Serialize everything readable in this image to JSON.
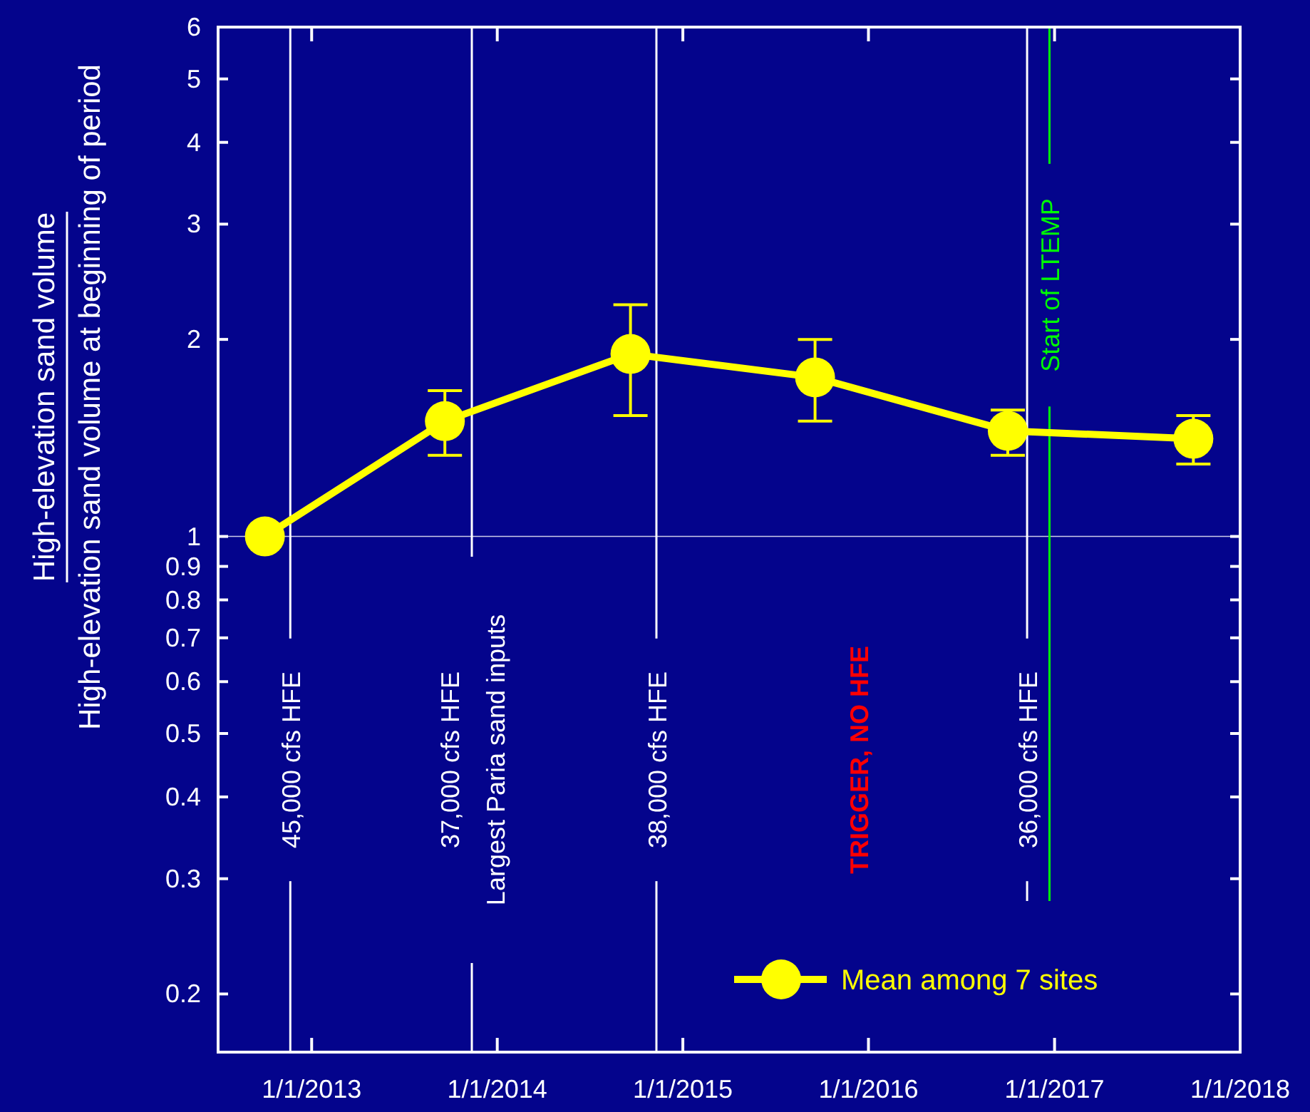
{
  "chart_data": {
    "type": "line",
    "ylabel": "High-elevation sand volume\nHigh-elevation sand volume at beginning of period",
    "x": [
      "2012-10-01",
      "2013-09-20",
      "2014-09-20",
      "2015-09-18",
      "2016-10-01",
      "2017-10-01"
    ],
    "series": [
      {
        "name": "Mean among 7 sites",
        "color": "#ffff00",
        "values": [
          1,
          1.5,
          1.9,
          1.75,
          1.45,
          1.41
        ],
        "errors": [
          null,
          [
            1.33,
            1.67
          ],
          [
            1.53,
            2.26
          ],
          [
            1.5,
            2.0
          ],
          [
            1.33,
            1.56
          ],
          [
            1.29,
            1.53
          ]
        ]
      }
    ],
    "log": true,
    "marker": "circle",
    "line_style": "solid",
    "legend": "bottom right",
    "grid": false,
    "xlim": [
      "2012-07-01",
      "2018-01-01"
    ],
    "xticks": [
      {
        "value": "2013-01-01",
        "label": "1/1/2013"
      },
      {
        "value": "2014-01-01",
        "label": "1/1/2014"
      },
      {
        "value": "2015-01-01",
        "label": "1/1/2015"
      },
      {
        "value": "2016-01-01",
        "label": "1/1/2016"
      },
      {
        "value": "2017-01-01",
        "label": "1/1/2017"
      },
      {
        "value": "2018-01-01",
        "label": "1/1/2018"
      }
    ],
    "ylim": [
      0.163,
      6
    ],
    "yticks": [
      0.2,
      0.3,
      0.4,
      0.5,
      0.6,
      0.7,
      0.8,
      0.9,
      1,
      2,
      3,
      4,
      5,
      6
    ],
    "ref_lines": [
      {
        "axis": "y",
        "value": 1
      },
      {
        "axis": "x",
        "value": "2012-11-20",
        "label": "45,000 cfs HFE",
        "color": "#ffffff"
      },
      {
        "axis": "x",
        "value": "2013-11-12",
        "label": "37,000 cfs HFE\nLargest Paria sand inputs",
        "color": "#ffffff"
      },
      {
        "axis": "x",
        "value": "2014-11-10",
        "label": "38,000 cfs HFE",
        "color": "#ffffff"
      },
      {
        "axis": "x",
        "value": "2016-11-08",
        "label": "36,000 cfs HFE",
        "color": "#ffffff"
      },
      {
        "axis": "x",
        "value": "2016-12-22",
        "label": "Start of LTEMP",
        "color": "#00ff00"
      }
    ],
    "annotations": [
      "TRIGGER, NO HFE"
    ]
  }
}
